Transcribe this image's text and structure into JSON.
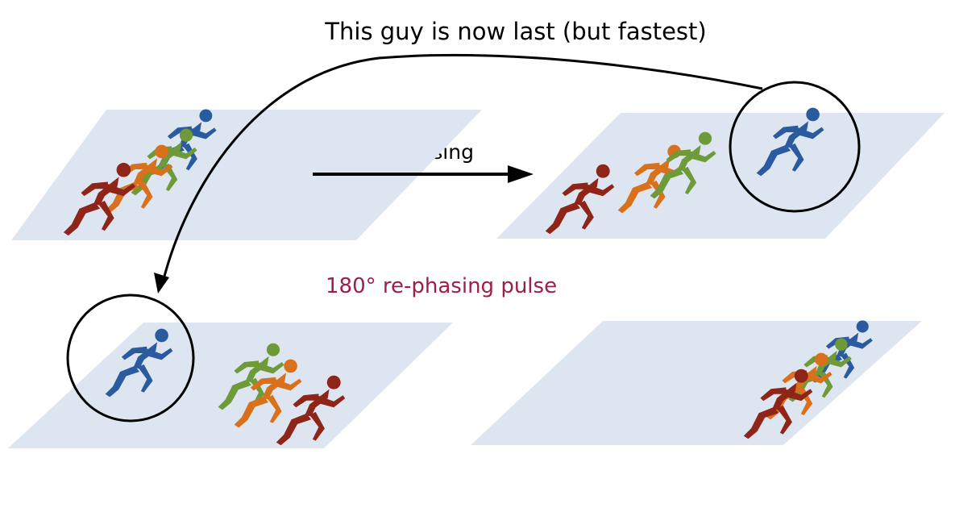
{
  "labels": {
    "top_annotation": "This guy is now last (but fastest)",
    "dephasing": "dephasing",
    "pulse": "180° re-phasing pulse"
  },
  "colors": {
    "pulse_text": "#9e1f45",
    "track": "#dde6f0",
    "arrow": "#000000",
    "runner_blue": "#2b5b9f",
    "runner_green": "#6e9a3a",
    "runner_orange": "#d9701c",
    "runner_red": "#8f2418"
  },
  "panels": [
    {
      "id": "start",
      "runners": [
        "blue",
        "green",
        "orange",
        "red"
      ],
      "circled": ""
    },
    {
      "id": "dephased",
      "runners": [
        "blue",
        "green",
        "orange",
        "red"
      ],
      "circled": "blue"
    },
    {
      "id": "after-pulse",
      "runners": [
        "blue",
        "green",
        "orange",
        "red"
      ],
      "circled": "blue"
    },
    {
      "id": "rephased",
      "runners": [
        "blue",
        "green",
        "orange",
        "red"
      ],
      "circled": ""
    }
  ]
}
